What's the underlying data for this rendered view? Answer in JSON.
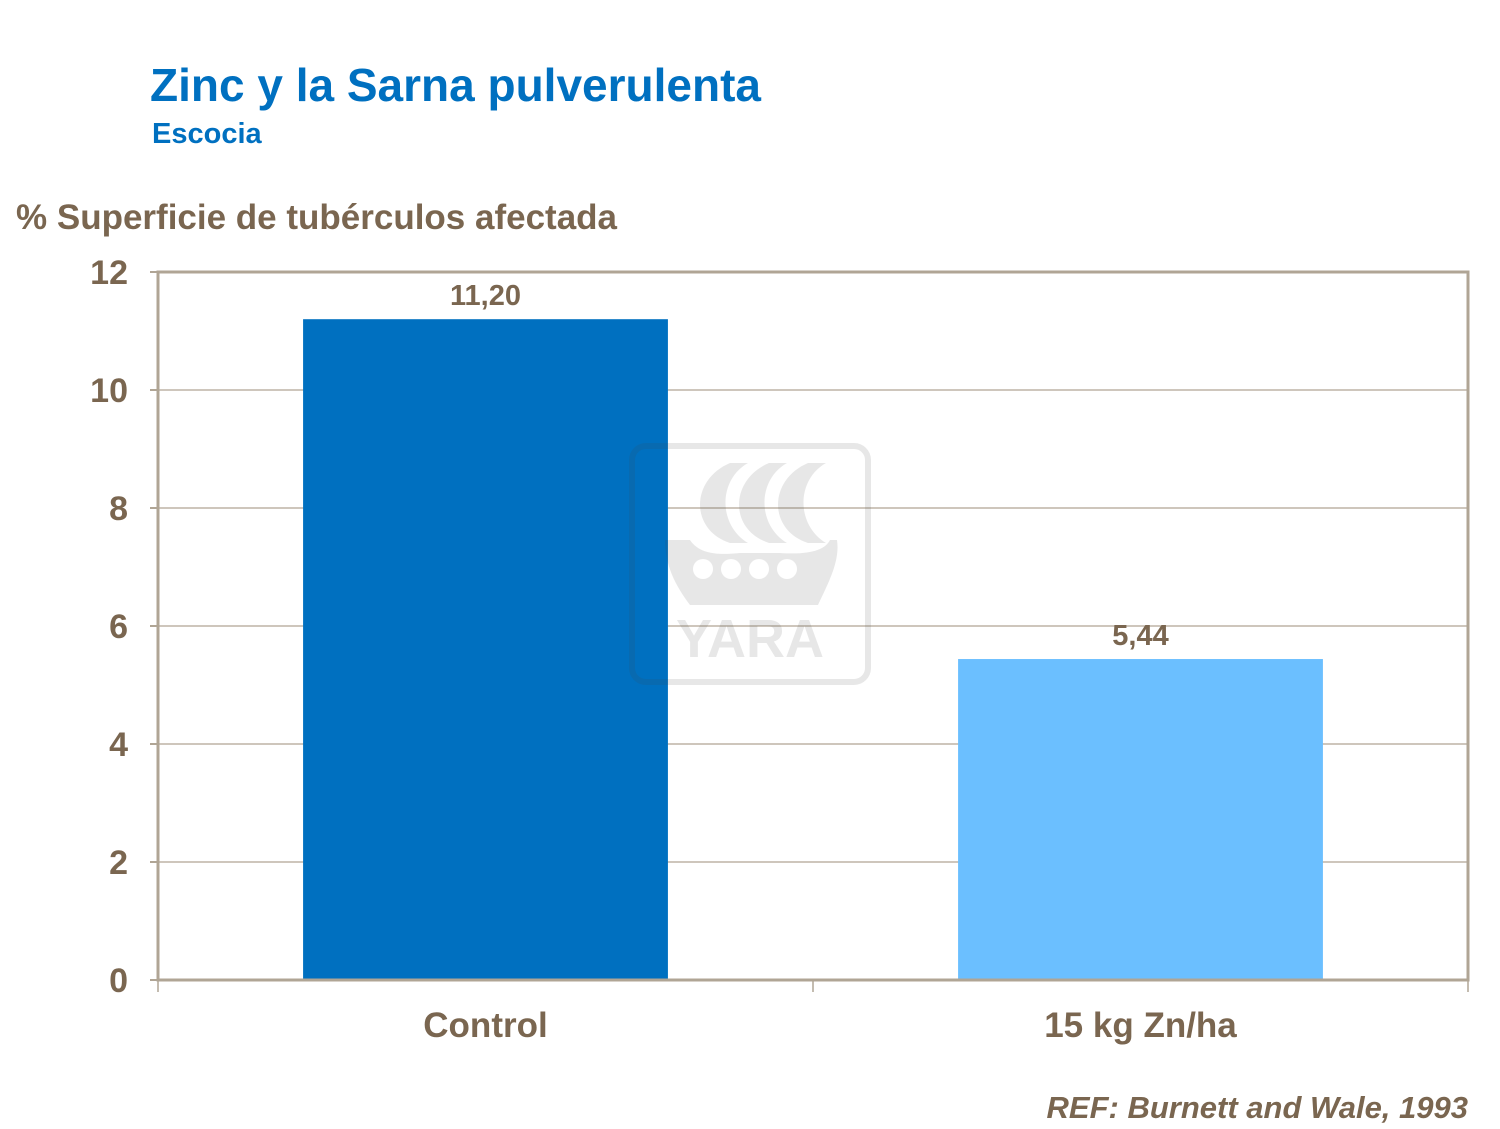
{
  "chart_data": {
    "type": "bar",
    "title": "Zinc y la Sarna pulverulenta",
    "subtitle": "Escocia",
    "xlabel": "",
    "ylabel": "% Superficie de tubérculos afectada",
    "categories": [
      "Control",
      "15 kg Zn/ha"
    ],
    "values": [
      11.2,
      5.44
    ],
    "data_labels": [
      "11,20",
      "5,44"
    ],
    "bar_colors": [
      "#0070C0",
      "#6BBFFF"
    ],
    "ylim": [
      0,
      12
    ],
    "yticks": [
      0,
      2,
      4,
      6,
      8,
      10,
      12
    ],
    "grid": true,
    "legend": "none",
    "reference": "REF: Burnett and Wale, 1993",
    "watermark": "YARA"
  }
}
